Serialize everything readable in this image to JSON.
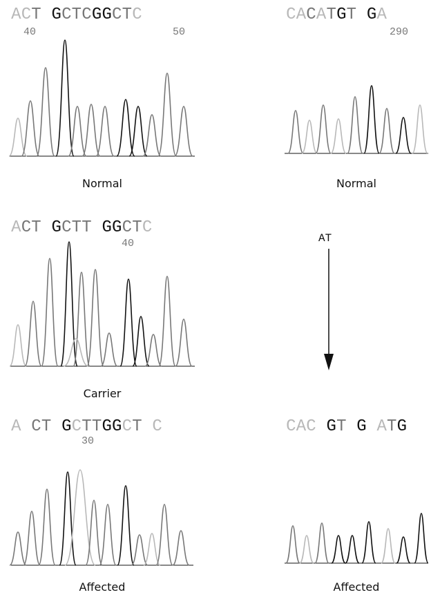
{
  "colors": {
    "dark": "#111111",
    "mid": "#777777",
    "light": "#b8b8b8"
  },
  "panels": [
    {
      "id": "normal-1",
      "sequence": [
        [
          "A",
          "l"
        ],
        [
          "C",
          "l"
        ],
        [
          "T",
          "m"
        ],
        [
          " ",
          "l"
        ],
        [
          "G",
          "d"
        ],
        [
          "C",
          "m"
        ],
        [
          "T",
          "m"
        ],
        [
          "C",
          "m"
        ],
        [
          "G",
          "d"
        ],
        [
          "G",
          "d"
        ],
        [
          "C",
          "m"
        ],
        [
          "T",
          "m"
        ],
        [
          "C",
          "l"
        ]
      ],
      "pos_left": "40",
      "pos_right": "50",
      "label": "Normal"
    },
    {
      "id": "normal-2",
      "sequence": [
        [
          "C",
          "l"
        ],
        [
          "A",
          "l"
        ],
        [
          "C",
          "m"
        ],
        [
          "A",
          "l"
        ],
        [
          "T",
          "m"
        ],
        [
          "G",
          "d"
        ],
        [
          "T",
          "m"
        ],
        [
          " ",
          "l"
        ],
        [
          "G",
          "d"
        ],
        [
          "A",
          "l"
        ]
      ],
      "pos_right": "290",
      "label": "Normal"
    },
    {
      "id": "carrier",
      "sequence": [
        [
          "A",
          "l"
        ],
        [
          "C",
          "m"
        ],
        [
          "T",
          "m"
        ],
        [
          " ",
          "l"
        ],
        [
          "G",
          "d"
        ],
        [
          "C",
          "m"
        ],
        [
          "T",
          "m"
        ],
        [
          "T",
          "m"
        ],
        [
          " ",
          "l"
        ],
        [
          "G",
          "d"
        ],
        [
          "G",
          "d"
        ],
        [
          "C",
          "m"
        ],
        [
          "T",
          "m"
        ],
        [
          "C",
          "l"
        ]
      ],
      "pos_mid": "40",
      "label": "Carrier"
    },
    {
      "id": "affected-1",
      "sequence": [
        [
          "A",
          "l"
        ],
        [
          " ",
          "l"
        ],
        [
          "C",
          "m"
        ],
        [
          "T",
          "m"
        ],
        [
          " ",
          "l"
        ],
        [
          "G",
          "d"
        ],
        [
          "C",
          "l"
        ],
        [
          "T",
          "m"
        ],
        [
          "T",
          "m"
        ],
        [
          "G",
          "d"
        ],
        [
          "G",
          "d"
        ],
        [
          "C",
          "l"
        ],
        [
          "T",
          "m"
        ],
        [
          " ",
          "l"
        ],
        [
          "C",
          "l"
        ]
      ],
      "pos_mid": "30",
      "label": "Affected"
    },
    {
      "id": "affected-2",
      "sequence": [
        [
          "C",
          "l"
        ],
        [
          "A",
          "l"
        ],
        [
          "C",
          "l"
        ],
        [
          " ",
          "l"
        ],
        [
          "G",
          "d"
        ],
        [
          "T",
          "m"
        ],
        [
          " ",
          "l"
        ],
        [
          "G",
          "d"
        ],
        [
          " ",
          "l"
        ],
        [
          "A",
          "l"
        ],
        [
          "T",
          "m"
        ],
        [
          "G",
          "d"
        ]
      ],
      "label": "Affected"
    }
  ],
  "deletion": {
    "text": "AT"
  }
}
